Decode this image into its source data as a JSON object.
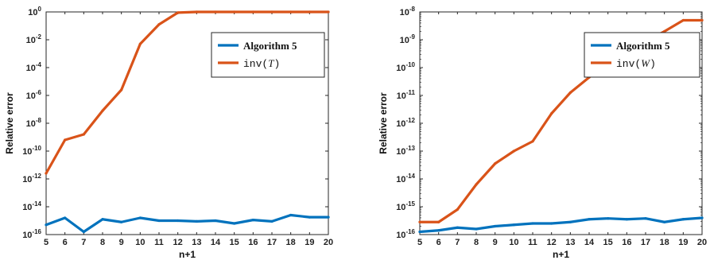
{
  "chart_data": [
    {
      "type": "line",
      "xlabel": "n+1",
      "ylabel": "Relative error",
      "xlim": [
        5,
        20
      ],
      "ylim_exp": [
        -16,
        0
      ],
      "yscale": "log",
      "x": [
        5,
        6,
        7,
        8,
        9,
        10,
        11,
        12,
        13,
        14,
        15,
        16,
        17,
        18,
        19,
        20
      ],
      "x_ticks": [
        "5",
        "6",
        "7",
        "8",
        "9",
        "10",
        "11",
        "12",
        "13",
        "14",
        "15",
        "16",
        "17",
        "18",
        "19",
        "20"
      ],
      "y_tick_exps": [
        -16,
        -14,
        -12,
        -10,
        -8,
        -6,
        -4,
        -2,
        0
      ],
      "legend_position": "top-right",
      "series": [
        {
          "name": "Algorithm 5",
          "color": "#0072BD",
          "legend_parts": [
            {
              "text": "Algorithm 5",
              "style": "bold"
            }
          ],
          "log10_values": [
            -15.3,
            -14.8,
            -15.8,
            -14.9,
            -15.1,
            -14.8,
            -15.0,
            -15.0,
            -15.05,
            -15.0,
            -15.2,
            -14.95,
            -15.05,
            -14.6,
            -14.75,
            -14.75
          ]
        },
        {
          "name": "inv(T)",
          "color": "#D95319",
          "legend_parts": [
            {
              "text": "inv(",
              "style": "mono"
            },
            {
              "text": "T",
              "style": "italic"
            },
            {
              "text": ")",
              "style": "mono"
            }
          ],
          "log10_values": [
            -11.6,
            -9.2,
            -8.8,
            -7.1,
            -5.6,
            -2.3,
            -0.9,
            -0.05,
            0,
            0,
            0,
            0,
            0,
            0,
            0,
            0
          ]
        }
      ]
    },
    {
      "type": "line",
      "xlabel": "n+1",
      "ylabel": "Relative error",
      "xlim": [
        5,
        20
      ],
      "ylim_exp": [
        -16,
        -8
      ],
      "yscale": "log",
      "x": [
        5,
        6,
        7,
        8,
        9,
        10,
        11,
        12,
        13,
        14,
        15,
        16,
        17,
        18,
        19,
        20
      ],
      "x_ticks": [
        "5",
        "6",
        "7",
        "8",
        "9",
        "10",
        "11",
        "12",
        "13",
        "14",
        "15",
        "16",
        "17",
        "18",
        "19",
        "20"
      ],
      "y_tick_exps": [
        -16,
        -15,
        -14,
        -13,
        -12,
        -11,
        -10,
        -9,
        -8
      ],
      "legend_position": "top-right",
      "series": [
        {
          "name": "Algorithm 5",
          "color": "#0072BD",
          "legend_parts": [
            {
              "text": "Algorithm 5",
              "style": "bold"
            }
          ],
          "log10_values": [
            -15.9,
            -15.85,
            -15.75,
            -15.8,
            -15.7,
            -15.65,
            -15.6,
            -15.6,
            -15.55,
            -15.45,
            -15.42,
            -15.45,
            -15.42,
            -15.55,
            -15.45,
            -15.4
          ]
        },
        {
          "name": "inv(W)",
          "color": "#D95319",
          "legend_parts": [
            {
              "text": "inv(",
              "style": "mono"
            },
            {
              "text": "W",
              "style": "italic"
            },
            {
              "text": ")",
              "style": "mono"
            }
          ],
          "log10_values": [
            -15.55,
            -15.55,
            -15.1,
            -14.2,
            -13.45,
            -13.0,
            -12.65,
            -11.65,
            -10.9,
            -10.35,
            -9.85,
            -9.4,
            -9.05,
            -8.7,
            -8.3,
            -8.3
          ]
        }
      ]
    }
  ]
}
